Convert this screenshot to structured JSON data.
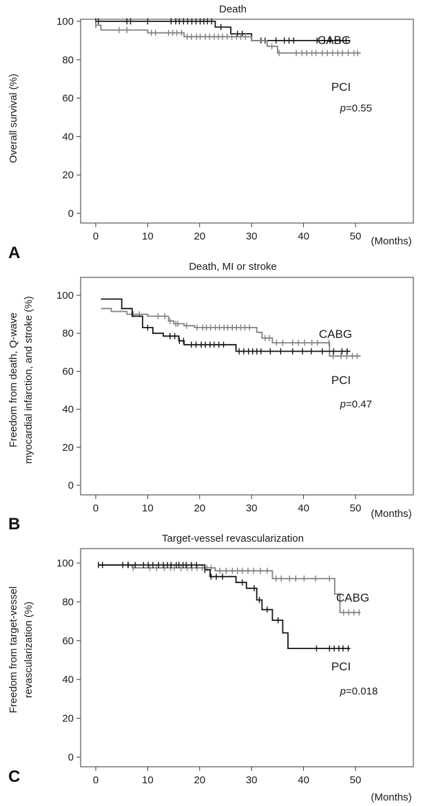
{
  "chart_data": [
    {
      "type": "line",
      "panel": "A",
      "title": "Death",
      "ylabel": "Overall survival (%)",
      "xunit": "(Months)",
      "xlim": [
        0,
        50
      ],
      "ylim": [
        0,
        100
      ],
      "xticks": [
        0,
        10,
        20,
        30,
        40,
        50
      ],
      "yticks": [
        0,
        20,
        40,
        60,
        80,
        100
      ],
      "series": [
        {
          "name": "CABG",
          "color": "#141414",
          "steps": [
            [
              0,
              100
            ],
            [
              23,
              100
            ],
            [
              23,
              97
            ],
            [
              26,
              97
            ],
            [
              26,
              93.5
            ],
            [
              30,
              93.5
            ],
            [
              30,
              90
            ],
            [
              49,
              90
            ]
          ],
          "censors": [
            0,
            0.5,
            6,
            6.7,
            10,
            14.5,
            15.4,
            16.1,
            16.9,
            17.7,
            18.5,
            19.3,
            20.1,
            20.8,
            21.5,
            22.3,
            24.1,
            27.3,
            28.2,
            31.8,
            32.6,
            34.7,
            36.3,
            37.2,
            38.1,
            42.6,
            44.0,
            45.1,
            46.1,
            47.0,
            48.2
          ]
        },
        {
          "name": "PCI",
          "color": "#808080",
          "steps": [
            [
              0,
              98
            ],
            [
              1,
              98
            ],
            [
              1,
              95.5
            ],
            [
              10,
              95.5
            ],
            [
              10,
              94
            ],
            [
              17,
              94
            ],
            [
              17,
              92
            ],
            [
              30,
              92
            ],
            [
              30,
              90
            ],
            [
              33,
              90
            ],
            [
              33,
              87
            ],
            [
              35,
              87
            ],
            [
              35,
              83.5
            ],
            [
              51,
              83.5
            ]
          ],
          "censors": [
            0,
            4.5,
            6,
            10.7,
            11.5,
            14.0,
            14.8,
            15.6,
            16.5,
            17.6,
            18.4,
            19.4,
            20.1,
            21.1,
            21.9,
            22.8,
            23.6,
            24.4,
            25.3,
            26.2,
            27.1,
            27.9,
            28.8,
            33.9,
            35.3,
            38.6,
            39.7,
            40.6,
            41.6,
            42.4,
            43.6,
            44.6,
            45.6,
            46.6,
            47.5,
            48.6,
            49.7,
            50.4
          ]
        }
      ],
      "labels": {
        "top_label": "CABG",
        "bottom_label": "PCI",
        "pvalue_prefix": "p",
        "pvalue_value": "=0.55"
      }
    },
    {
      "type": "line",
      "panel": "B",
      "title": "Death, MI or stroke",
      "ylabel_line1": "Freedom from death, Q-wave",
      "ylabel_line2": "myocardial infarction, and stroke (%)",
      "xunit": "(Months)",
      "xlim": [
        0,
        50
      ],
      "ylim": [
        0,
        100
      ],
      "xticks": [
        0,
        10,
        20,
        30,
        40,
        50
      ],
      "yticks": [
        0,
        20,
        40,
        60,
        80,
        100
      ],
      "series": [
        {
          "name": "CABG",
          "color": "#808080",
          "steps": [
            [
              1,
              93
            ],
            [
              3,
              93
            ],
            [
              3,
              91.5
            ],
            [
              6,
              91.5
            ],
            [
              6,
              90
            ],
            [
              10,
              90
            ],
            [
              10,
              89
            ],
            [
              14,
              89
            ],
            [
              14,
              86.5
            ],
            [
              15,
              86.5
            ],
            [
              15,
              85
            ],
            [
              17,
              85
            ],
            [
              17,
              84
            ],
            [
              19,
              84
            ],
            [
              19,
              83
            ],
            [
              31,
              83
            ],
            [
              31,
              80.5
            ],
            [
              32,
              80.5
            ],
            [
              32,
              77.5
            ],
            [
              34,
              77.5
            ],
            [
              34,
              75
            ],
            [
              45,
              75
            ],
            [
              45,
              68
            ],
            [
              51,
              68
            ]
          ],
          "censors": [
            7.2,
            8.4,
            12.0,
            13.3,
            14.3,
            15.4,
            15.8,
            17.5,
            19.5,
            20.6,
            21.3,
            22.1,
            23.0,
            23.8,
            24.7,
            25.4,
            26.3,
            27.1,
            27.9,
            28.7,
            29.6,
            32.6,
            33.4,
            34.8,
            36.0,
            37.9,
            39.0,
            40.2,
            41.6,
            42.7,
            44.9,
            45.7,
            47.2,
            48.3,
            49.4,
            50.3
          ]
        },
        {
          "name": "PCI",
          "color": "#141414",
          "steps": [
            [
              1,
              98
            ],
            [
              5,
              98
            ],
            [
              5,
              93
            ],
            [
              7,
              93
            ],
            [
              7,
              89
            ],
            [
              9,
              89
            ],
            [
              9,
              83
            ],
            [
              11,
              83
            ],
            [
              11,
              80
            ],
            [
              13,
              80
            ],
            [
              13,
              78.5
            ],
            [
              16,
              78.5
            ],
            [
              16,
              76
            ],
            [
              17,
              76
            ],
            [
              17,
              74
            ],
            [
              27,
              74
            ],
            [
              27,
              70.5
            ],
            [
              49,
              70.5
            ]
          ],
          "censors": [
            10.0,
            14.3,
            15.2,
            16.1,
            16.9,
            18.4,
            19.3,
            20.3,
            21.1,
            22.0,
            22.8,
            23.7,
            24.6,
            27.6,
            28.5,
            29.4,
            30.2,
            31.0,
            31.8,
            33.6,
            35.6,
            37.9,
            39.8,
            41.5,
            43.6,
            45.8,
            47.4,
            48.4
          ]
        }
      ],
      "labels": {
        "top_label": "CABG",
        "bottom_label": "PCI",
        "pvalue_prefix": "p",
        "pvalue_value": "=0.47"
      }
    },
    {
      "type": "line",
      "panel": "C",
      "title": "Target-vessel revascularization",
      "ylabel_line1": "Freedom from target-vessel",
      "ylabel_line2": "revascularization (%)",
      "xunit": "(Months)",
      "xlim": [
        0,
        50
      ],
      "ylim": [
        0,
        100
      ],
      "xticks": [
        0,
        10,
        20,
        30,
        40,
        50
      ],
      "yticks": [
        0,
        20,
        40,
        60,
        80,
        100
      ],
      "series": [
        {
          "name": "CABG",
          "color": "#808080",
          "steps": [
            [
              0.5,
              99
            ],
            [
              7,
              99
            ],
            [
              7,
              97.5
            ],
            [
              23,
              97.5
            ],
            [
              23,
              96
            ],
            [
              34,
              96
            ],
            [
              34,
              92
            ],
            [
              46,
              92
            ],
            [
              46,
              84
            ],
            [
              47,
              84
            ],
            [
              47,
              74.5
            ],
            [
              51,
              74.5
            ]
          ],
          "censors": [
            6.3,
            7.2,
            10.4,
            11.7,
            13.2,
            14.4,
            15.1,
            16.4,
            17.6,
            18.5,
            19.5,
            20.5,
            21.4,
            22.2,
            23.9,
            25.1,
            26.3,
            27.3,
            28.2,
            29.3,
            30.4,
            31.7,
            33.0,
            34.7,
            35.7,
            37.3,
            38.5,
            40.1,
            42.3,
            45.0,
            47.7,
            48.7,
            49.7,
            50.7
          ]
        },
        {
          "name": "PCI",
          "color": "#141414",
          "steps": [
            [
              0.5,
              99
            ],
            [
              21,
              99
            ],
            [
              21,
              96.5
            ],
            [
              22,
              96.5
            ],
            [
              22,
              93
            ],
            [
              27,
              93
            ],
            [
              27,
              90
            ],
            [
              29,
              90
            ],
            [
              29,
              87
            ],
            [
              31,
              87
            ],
            [
              31,
              81
            ],
            [
              32,
              81
            ],
            [
              32,
              76
            ],
            [
              34,
              76
            ],
            [
              34,
              70.5
            ],
            [
              36,
              70.5
            ],
            [
              36,
              64
            ],
            [
              37,
              64
            ],
            [
              37,
              56
            ],
            [
              49,
              56
            ]
          ],
          "censors": [
            0.5,
            1.3,
            5.2,
            6.2,
            7.6,
            9.2,
            10.1,
            11.0,
            12.1,
            13.0,
            13.8,
            14.5,
            15.5,
            16.0,
            16.8,
            17.4,
            18.4,
            19.4,
            21.0,
            22.2,
            23.2,
            24.4,
            28.2,
            30.5,
            31.5,
            33.0,
            35.1,
            42.5,
            45.0,
            45.9,
            46.8,
            47.6,
            48.6
          ]
        }
      ],
      "labels": {
        "top_label": "CABG",
        "bottom_label": "PCI",
        "pvalue_prefix": "p",
        "pvalue_value": "=0.018"
      }
    }
  ]
}
